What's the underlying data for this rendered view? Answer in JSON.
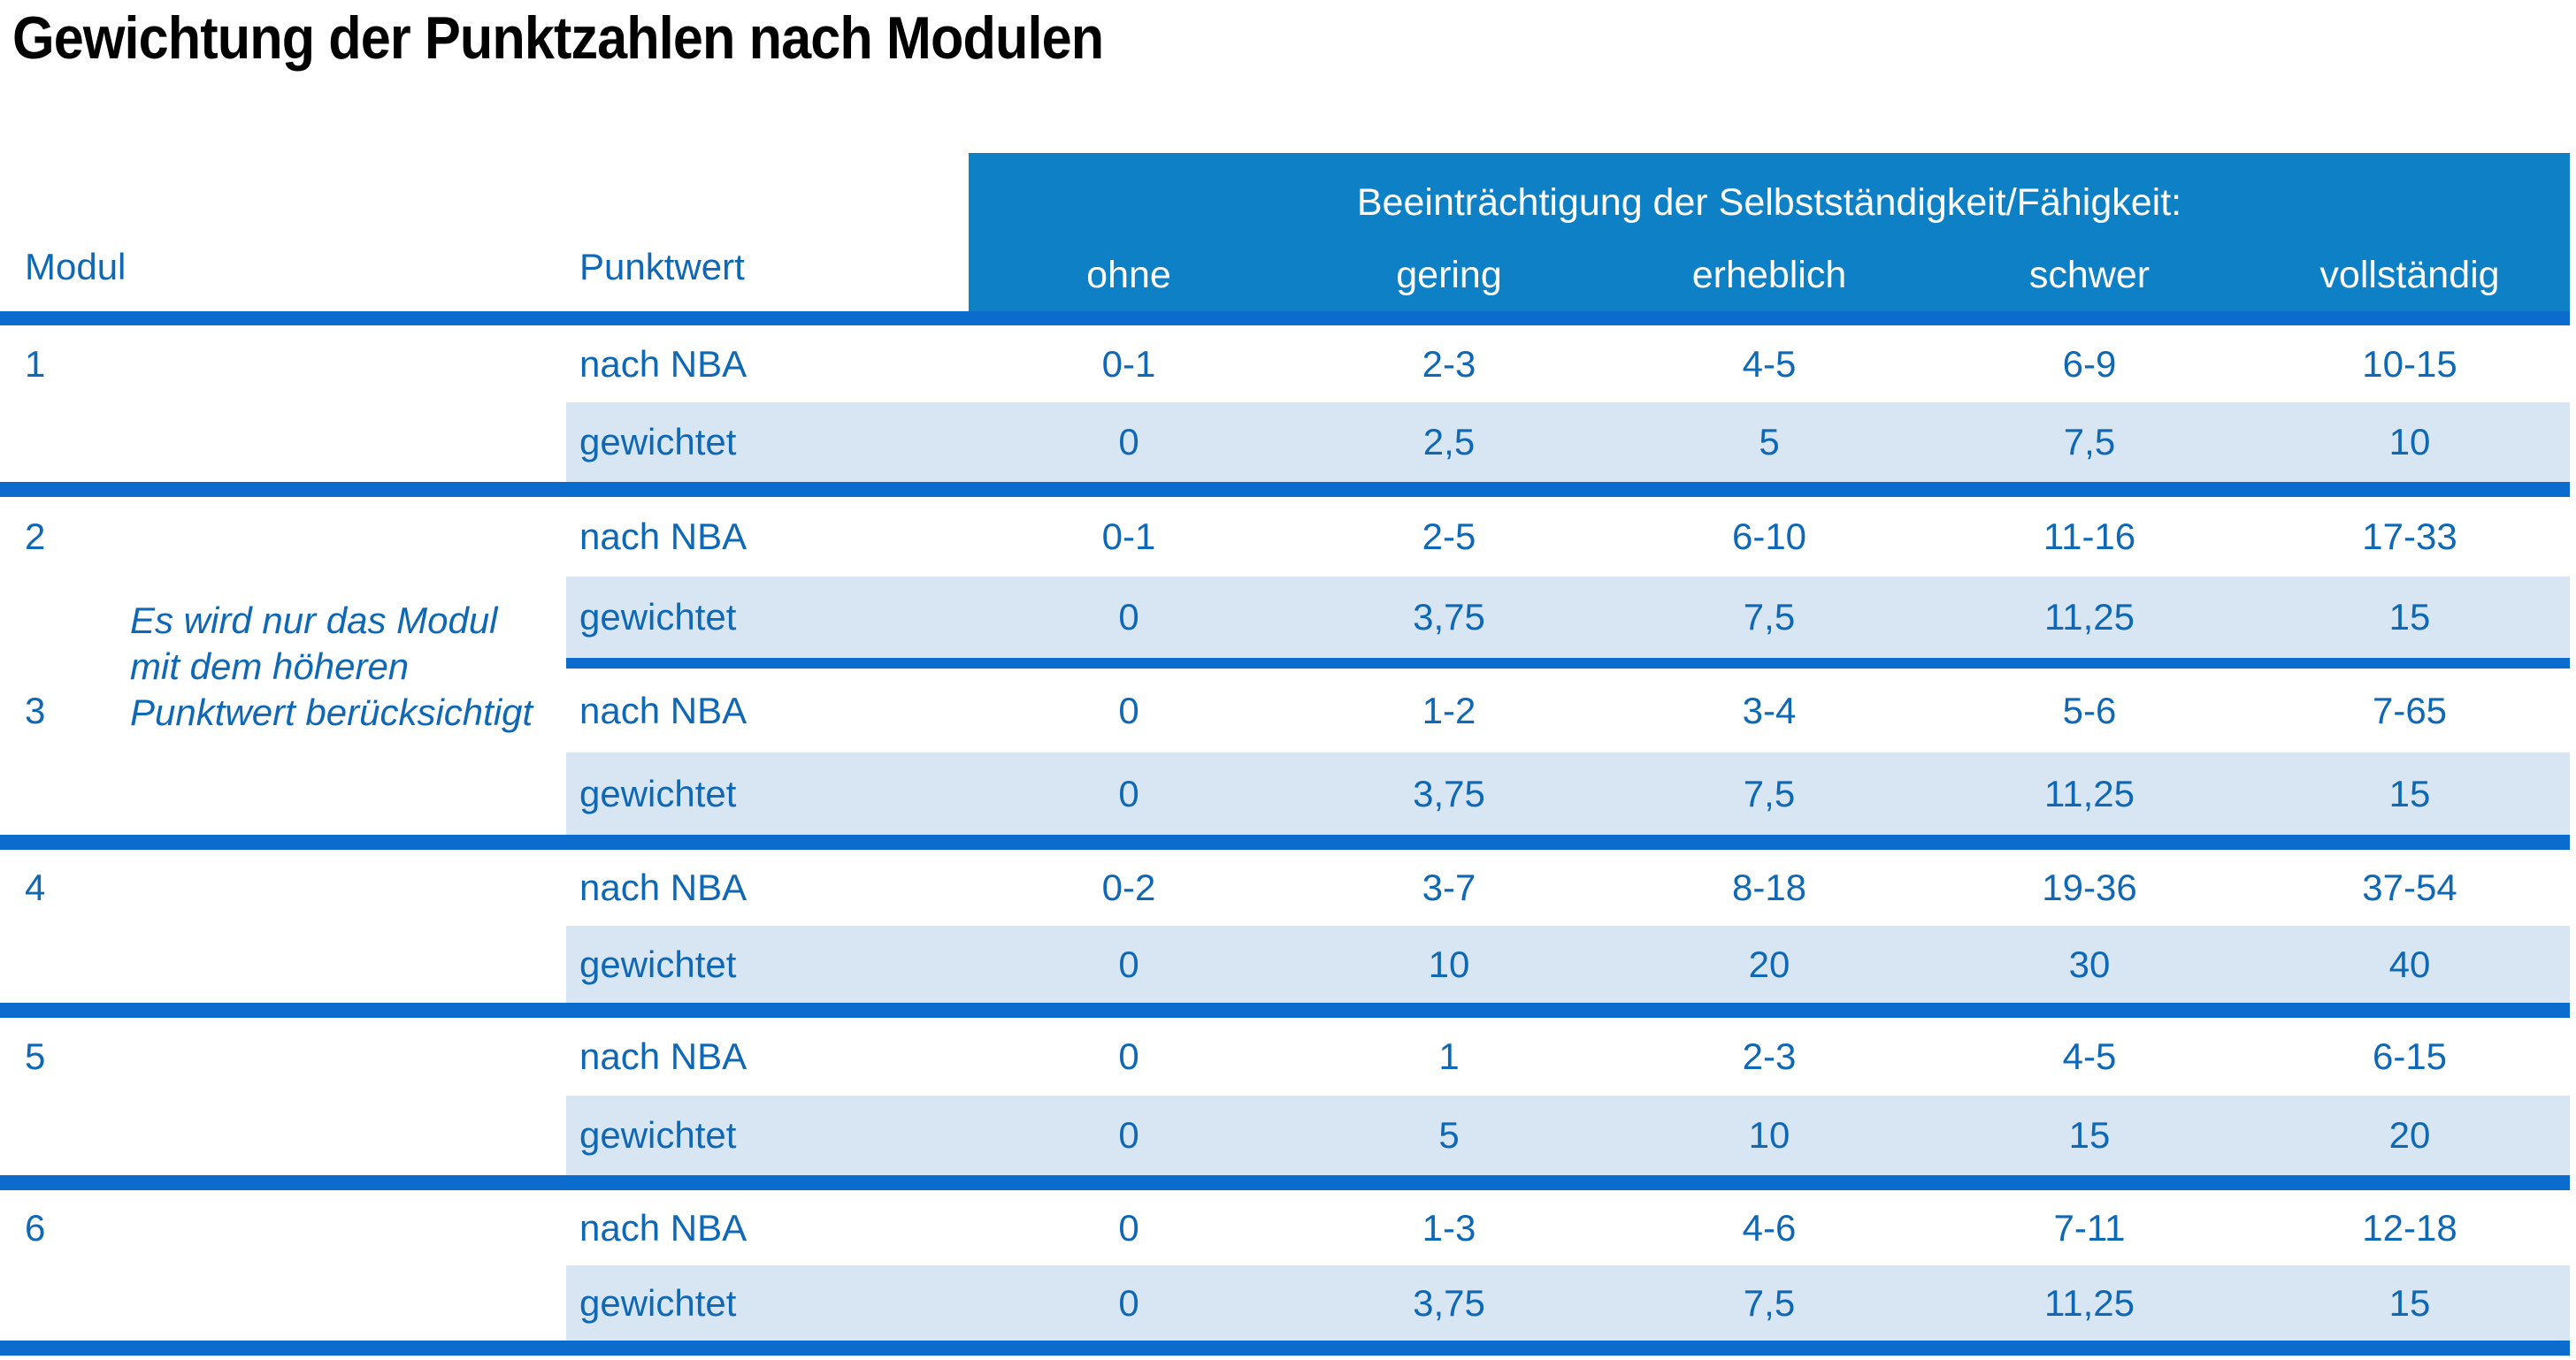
{
  "page": {
    "title": "Gewichtung der Punktzahlen nach Modulen"
  },
  "table": {
    "header": {
      "modul": "Modul",
      "punktwert": "Punktwert",
      "group_label": "Beeinträchtigung der Selbstständigkeit/Fähigkeit:",
      "severity_levels": [
        "ohne",
        "gering",
        "erheblich",
        "schwer",
        "vollständig"
      ]
    },
    "row_labels": {
      "nba": "nach NBA",
      "weighted": "gewichtet"
    },
    "note": "Es wird nur das Modul\nmit dem höheren\nPunktwert berücksichtigt",
    "modules": [
      {
        "id": "1",
        "nba": [
          "0-1",
          "2-3",
          "4-5",
          "6-9",
          "10-15"
        ],
        "weighted": [
          "0",
          "2,5",
          "5",
          "7,5",
          "10"
        ]
      },
      {
        "id": "2",
        "nba": [
          "0-1",
          "2-5",
          "6-10",
          "11-16",
          "17-33"
        ],
        "weighted": [
          "0",
          "3,75",
          "7,5",
          "11,25",
          "15"
        ]
      },
      {
        "id": "3",
        "nba": [
          "0",
          "1-2",
          "3-4",
          "5-6",
          "7-65"
        ],
        "weighted": [
          "0",
          "3,75",
          "7,5",
          "11,25",
          "15"
        ]
      },
      {
        "id": "4",
        "nba": [
          "0-2",
          "3-7",
          "8-18",
          "19-36",
          "37-54"
        ],
        "weighted": [
          "0",
          "10",
          "20",
          "30",
          "40"
        ]
      },
      {
        "id": "5",
        "nba": [
          "0",
          "1",
          "2-3",
          "4-5",
          "6-15"
        ],
        "weighted": [
          "0",
          "5",
          "10",
          "15",
          "20"
        ]
      },
      {
        "id": "6",
        "nba": [
          "0",
          "1-3",
          "4-6",
          "7-11",
          "12-18"
        ],
        "weighted": [
          "0",
          "3,75",
          "7,5",
          "11,25",
          "15"
        ]
      }
    ],
    "colors": {
      "header_blue": "#0E81C6",
      "line_blue": "#0B6CCE",
      "band_blue": "#D8E6F3",
      "text_blue": "#0E68B6"
    }
  }
}
